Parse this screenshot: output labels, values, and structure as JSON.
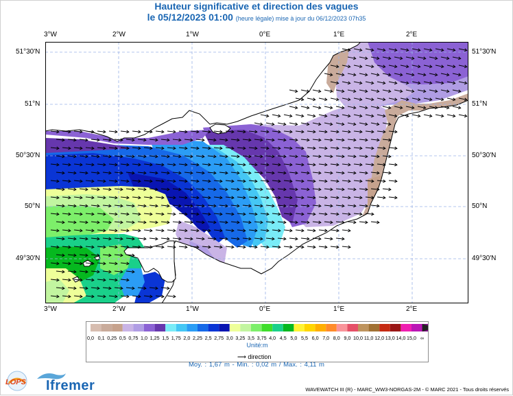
{
  "title": {
    "line1": "Hauteur significative et direction des vagues",
    "line2_main": "le 05/12/2023 01:00",
    "line2_note": "(heure légale) mise à jour du 06/12/2023 07h35"
  },
  "axes": {
    "lon_labels": [
      "3°W",
      "2°W",
      "1°W",
      "0°E",
      "1°E",
      "2°E"
    ],
    "lat_labels": [
      "51°30'N",
      "51°N",
      "50°30'N",
      "50°N",
      "49°30'N"
    ]
  },
  "legend": {
    "values": [
      "0,0",
      "0,1",
      "0,25",
      "0,5",
      "0,75",
      "1,0",
      "1,25",
      "1,5",
      "1,75",
      "2,0",
      "2,25",
      "2,5",
      "2,75",
      "3,0",
      "3,25",
      "3,5",
      "3,75",
      "4,0",
      "4,5",
      "5,0",
      "5,5",
      "6,0",
      "7,0",
      "8,0",
      "9,0",
      "10,0",
      "11,0",
      "12,0",
      "13,0",
      "14,0",
      "15,0",
      "∞"
    ],
    "colors": [
      "#d7bdb0",
      "#c9ab9b",
      "#c6a28d",
      "#c9b4e6",
      "#b09de4",
      "#8b62d4",
      "#6637ad",
      "#79ecf7",
      "#45c7f4",
      "#2b9df5",
      "#1669e8",
      "#0a35d5",
      "#0915b2",
      "#eeff99",
      "#c2f5a0",
      "#7def6a",
      "#3fde2b",
      "#1ad08a",
      "#06b81f",
      "#fff333",
      "#ffd500",
      "#ffae00",
      "#ff8b2a",
      "#f9949a",
      "#e55067",
      "#be945e",
      "#a17133",
      "#c52a12",
      "#991616",
      "#ef1eb0",
      "#bb16b5",
      "#830b88"
    ],
    "unit_label": "Unité:m",
    "direction_label": "direction"
  },
  "stats": {
    "text": "Moy. : 1,67 m   -   Min. : 0,02 m / Max. : 4,11 m"
  },
  "footer": {
    "credit": "WAVEWATCH III (R) - MARC_WW3-NORGAS-2M - © MARC 2021 - Tous droits réservés",
    "brand_ifremer": "Ifremer",
    "brand_lops": "LOPS"
  },
  "colors": {
    "sea_white": "#ffffff",
    "land": "#ffffff",
    "grid": "#9ab3e6",
    "title_blue": "#1a66b3"
  }
}
